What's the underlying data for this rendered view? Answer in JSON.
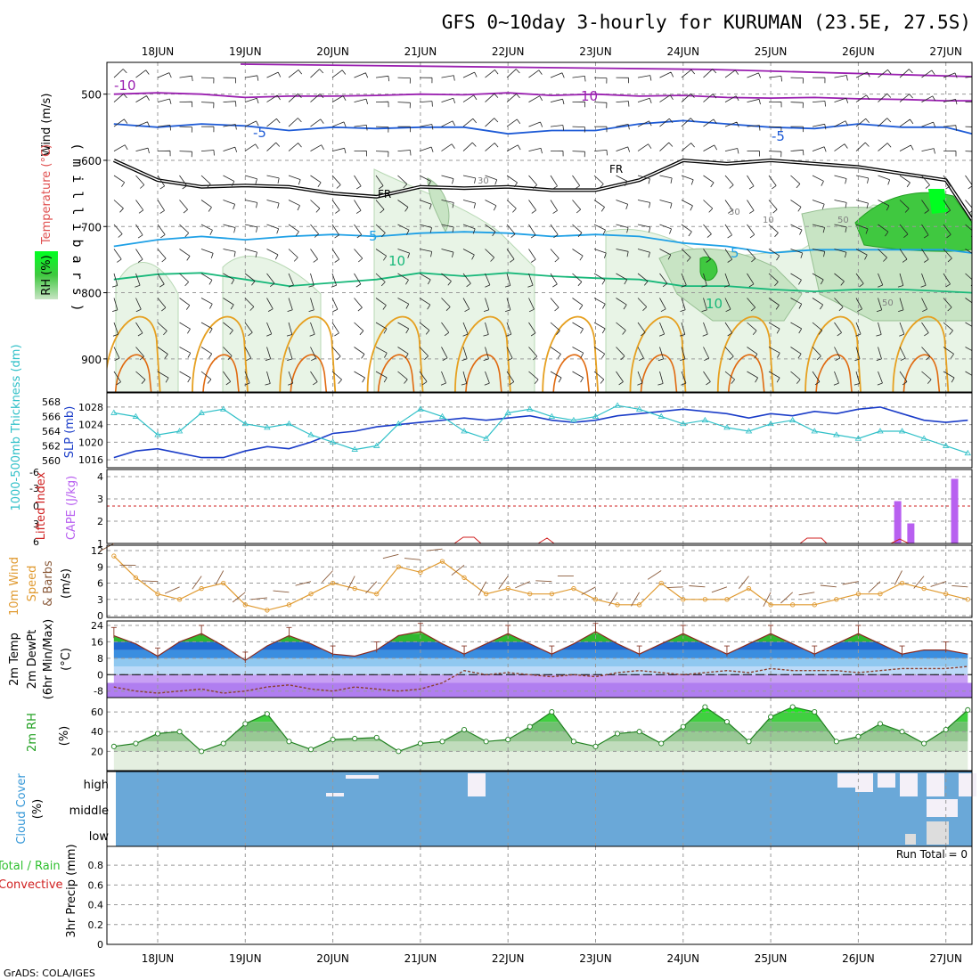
{
  "title": "GFS 0~10day 3-hourly for KURUMAN (23.5E, 27.5S)",
  "footer": "GrADS: COLA/IGES",
  "days": [
    "18JUN",
    "19JUN",
    "20JUN",
    "21JUN",
    "22JUN",
    "23JUN",
    "24JUN",
    "25JUN",
    "26JUN",
    "27JUN"
  ],
  "colors": {
    "frame": "#000000",
    "grid": "#999999",
    "minus10": "#9a1fb0",
    "minus5": "#1e5bd6",
    "plus5": "#1ea0e6",
    "plus10": "#18b87a",
    "freeze": "#000000",
    "warm1": "#e6a020",
    "warm2": "#e06a10",
    "rh1": "#e8f4e6",
    "rh2": "#c8e4c4",
    "rh3": "#a8c8a8",
    "rh4": "#30c030",
    "slp": "#1a3cc8",
    "thick": "#30c0c8",
    "cape": "#b860f0",
    "li": "#d02020",
    "wind": "#e09a30",
    "barb": "#8a5a3a",
    "temp": "#20b020",
    "dew": "#8a4030",
    "rhline": "#208020",
    "cloud": "#6aa8d8",
    "cloudclear": "#f4f0f8",
    "precip": "#d02020"
  },
  "upper": {
    "ylabel": "( m i l l i b a r s )",
    "ticks": [
      500,
      600,
      700,
      800,
      900
    ],
    "legend": [
      "Wind (m/s)",
      "Temperature (°C)",
      "RH (%)"
    ],
    "labels": {
      "m10": "-10",
      "p10a": "10",
      "m5a": "-5",
      "m5b": "-5",
      "fr1": "FR",
      "fr2": "FR",
      "p5a": "5",
      "p5b": "5",
      "p10b": "10",
      "p10c": "10",
      "r30a": "30",
      "r30b": "30",
      "r10": "10",
      "r50a": "50",
      "r50b": "50"
    }
  },
  "slp_panel": {
    "left_label": "1000-500mb Thickness (dm)",
    "right_label": "SLP (mb)",
    "thick_ticks": [
      560,
      562,
      564,
      566,
      568
    ],
    "slp_ticks": [
      1016,
      1020,
      1024,
      1028
    ]
  },
  "cape_panel": {
    "left_label": "Lifted Index",
    "right_label": "CAPE (J/kg)",
    "li_ticks": [
      "6",
      "3",
      "0",
      "-3",
      "-6"
    ],
    "cape_ticks": [
      "1",
      "2",
      "3",
      "4"
    ]
  },
  "wind_panel": {
    "labels": [
      "10m Wind",
      "Speed",
      "& Barbs",
      "(m/s)"
    ],
    "ticks": [
      0,
      3,
      6,
      9,
      12
    ]
  },
  "temp_panel": {
    "labels": [
      "2m Temp",
      "2m DewPt",
      "(6hr Min/Max)",
      "(°C)"
    ],
    "ticks": [
      -8,
      0,
      8,
      16,
      24
    ]
  },
  "rh_panel": {
    "labels": [
      "2m RH",
      "(%)"
    ],
    "ticks": [
      20,
      40,
      60
    ]
  },
  "cloud_panel": {
    "labels": [
      "Cloud Cover",
      "(%)"
    ],
    "levels": [
      "high",
      "middle",
      "low"
    ]
  },
  "precip_panel": {
    "labels": [
      "Total / Rain",
      "Convective",
      "3hr Precip (mm)"
    ],
    "run_total": "Run Total = 0",
    "ticks": [
      "0",
      "0.2",
      "0.4",
      "0.6",
      "0.8"
    ]
  },
  "chart_data": [
    {
      "type": "line",
      "title": "GFS 0~10day 3-hourly for KURUMAN (23.5E, 27.5S)",
      "panel": "upper-air temperature isotherm heights (mb)",
      "x": [
        "17.5",
        "18.0",
        "18.5",
        "19.0",
        "19.5",
        "20.0",
        "20.5",
        "21.0",
        "21.5",
        "22.0",
        "22.5",
        "23.0",
        "23.5",
        "24.0",
        "24.5",
        "25.0",
        "25.5",
        "26.0",
        "26.5",
        "27.0",
        "27.3"
      ],
      "series": [
        {
          "name": "-10",
          "values": [
            500,
            498,
            500,
            505,
            503,
            503,
            502,
            500,
            501,
            498,
            502,
            500,
            503,
            502,
            505,
            506,
            505,
            507,
            508,
            510,
            510
          ]
        },
        {
          "name": "-5",
          "values": [
            545,
            550,
            545,
            548,
            555,
            550,
            552,
            550,
            550,
            560,
            555,
            555,
            545,
            540,
            545,
            550,
            552,
            545,
            550,
            550,
            560
          ]
        },
        {
          "name": "FR",
          "values": [
            600,
            630,
            640,
            638,
            640,
            650,
            655,
            640,
            642,
            640,
            645,
            645,
            630,
            600,
            605,
            600,
            605,
            610,
            620,
            630,
            690
          ]
        },
        {
          "name": "5",
          "values": [
            730,
            720,
            715,
            720,
            715,
            712,
            715,
            710,
            708,
            710,
            715,
            712,
            715,
            725,
            730,
            740,
            735,
            735,
            735,
            735,
            740
          ]
        },
        {
          "name": "10",
          "values": [
            780,
            772,
            770,
            780,
            790,
            785,
            780,
            770,
            775,
            770,
            775,
            778,
            780,
            790,
            790,
            795,
            798,
            795,
            795,
            798,
            800
          ]
        }
      ]
    },
    {
      "type": "line",
      "panel": "SLP and 1000-500mb thickness",
      "x": [
        "17.5",
        "17.75",
        "18.0",
        "18.25",
        "18.5",
        "18.75",
        "19.0",
        "19.25",
        "19.5",
        "19.75",
        "20.0",
        "20.25",
        "20.5",
        "20.75",
        "21.0",
        "21.25",
        "21.5",
        "21.75",
        "22.0",
        "22.25",
        "22.5",
        "22.75",
        "23.0",
        "23.25",
        "23.5",
        "23.75",
        "24.0",
        "24.25",
        "24.5",
        "24.75",
        "25.0",
        "25.25",
        "25.5",
        "25.75",
        "26.0",
        "26.25",
        "26.5",
        "26.75",
        "27.0",
        "27.25"
      ],
      "series": [
        {
          "name": "SLP (mb)",
          "values": [
            1016.5,
            1018,
            1018.5,
            1017.5,
            1016.5,
            1016.5,
            1018,
            1019,
            1018.5,
            1020,
            1022,
            1022.5,
            1023.5,
            1024,
            1024.5,
            1025,
            1025.5,
            1025,
            1025.5,
            1026,
            1025,
            1024.5,
            1025,
            1026,
            1026.5,
            1027,
            1027.5,
            1027,
            1026.5,
            1025.5,
            1026.5,
            1026,
            1027,
            1026.5,
            1027.5,
            1028,
            1026.5,
            1025,
            1024.5,
            1025
          ]
        },
        {
          "name": "1000-500mb Thickness (dm)",
          "values": [
            566.5,
            566,
            563.5,
            564,
            566.5,
            567,
            565,
            564.5,
            565,
            563.5,
            562.5,
            561.5,
            562,
            565,
            567,
            566,
            564,
            563,
            566.5,
            567,
            566,
            565.5,
            566,
            567.5,
            567,
            566,
            565,
            565.5,
            564.5,
            564,
            565,
            565.5,
            564,
            563.5,
            563,
            564,
            564,
            563,
            562,
            561
          ]
        }
      ]
    },
    {
      "type": "bar",
      "panel": "CAPE (J/kg)",
      "categories": [
        "26.45",
        "26.6",
        "27.1"
      ],
      "values": [
        2.9,
        1.9,
        3.9
      ]
    },
    {
      "type": "line",
      "panel": "10m wind speed (m/s)",
      "x": [
        "17.5",
        "17.75",
        "18.0",
        "18.25",
        "18.5",
        "18.75",
        "19.0",
        "19.25",
        "19.5",
        "19.75",
        "20.0",
        "20.25",
        "20.5",
        "20.75",
        "21.0",
        "21.25",
        "21.5",
        "21.75",
        "22.0",
        "22.25",
        "22.5",
        "22.75",
        "23.0",
        "23.25",
        "23.5",
        "23.75",
        "24.0",
        "24.25",
        "24.5",
        "24.75",
        "25.0",
        "25.25",
        "25.5",
        "25.75",
        "26.0",
        "26.25",
        "26.5",
        "26.75",
        "27.0",
        "27.25"
      ],
      "series": [
        {
          "name": "Speed",
          "values": [
            11,
            7,
            4,
            3,
            5,
            6,
            2,
            1,
            2,
            4,
            6,
            5,
            4,
            9,
            8,
            10,
            7,
            4,
            5,
            4,
            4,
            5,
            3,
            2,
            2,
            6,
            3,
            3,
            3,
            5,
            2,
            2,
            2,
            3,
            4,
            4,
            6,
            5,
            4,
            3
          ]
        }
      ]
    },
    {
      "type": "area",
      "panel": "2m temperature and dew point (°C)",
      "x": [
        "17.5",
        "17.75",
        "18.0",
        "18.25",
        "18.5",
        "18.75",
        "19.0",
        "19.25",
        "19.5",
        "19.75",
        "20.0",
        "20.25",
        "20.5",
        "20.75",
        "21.0",
        "21.25",
        "21.5",
        "21.75",
        "22.0",
        "22.25",
        "22.5",
        "22.75",
        "23.0",
        "23.25",
        "23.5",
        "23.75",
        "24.0",
        "24.25",
        "24.5",
        "24.75",
        "25.0",
        "25.25",
        "25.5",
        "25.75",
        "26.0",
        "26.25",
        "26.5",
        "26.75",
        "27.0",
        "27.25"
      ],
      "series": [
        {
          "name": "2m Temp",
          "values": [
            19,
            15,
            9,
            16,
            20,
            14,
            7,
            14,
            19,
            15,
            10,
            9,
            12,
            19,
            21,
            15,
            10,
            15,
            20,
            15,
            10,
            15,
            21,
            15,
            10,
            15,
            20,
            15,
            10,
            15,
            20,
            15,
            10,
            15,
            20,
            15,
            10,
            12,
            12,
            10
          ]
        },
        {
          "name": "2m DewPt",
          "values": [
            -6,
            -8,
            -9,
            -8,
            -7,
            -9,
            -8,
            -6,
            -5,
            -7,
            -8,
            -6,
            -7,
            -8,
            -7,
            -4,
            2,
            0,
            1,
            0,
            -1,
            0,
            -1,
            1,
            2,
            1,
            0,
            1,
            2,
            1,
            3,
            2,
            2,
            2,
            1,
            2,
            3,
            3,
            3,
            4
          ]
        }
      ]
    },
    {
      "type": "area",
      "panel": "2m RH (%)",
      "x": [
        "17.5",
        "17.75",
        "18.0",
        "18.25",
        "18.5",
        "18.75",
        "19.0",
        "19.25",
        "19.5",
        "19.75",
        "20.0",
        "20.25",
        "20.5",
        "20.75",
        "21.0",
        "21.25",
        "21.5",
        "21.75",
        "22.0",
        "22.25",
        "22.5",
        "22.75",
        "23.0",
        "23.25",
        "23.5",
        "23.75",
        "24.0",
        "24.25",
        "24.5",
        "24.75",
        "25.0",
        "25.25",
        "25.5",
        "25.75",
        "26.0",
        "26.25",
        "26.5",
        "26.75",
        "27.0",
        "27.25"
      ],
      "series": [
        {
          "name": "2m RH",
          "values": [
            25,
            28,
            38,
            40,
            20,
            28,
            48,
            58,
            30,
            22,
            32,
            33,
            34,
            20,
            28,
            30,
            42,
            30,
            32,
            45,
            60,
            30,
            25,
            38,
            40,
            28,
            45,
            65,
            50,
            30,
            55,
            65,
            60,
            30,
            35,
            48,
            40,
            28,
            42,
            62
          ]
        }
      ]
    },
    {
      "type": "bar",
      "panel": "3hr Precip (mm)",
      "categories": [
        "all times"
      ],
      "values": [
        0
      ]
    }
  ]
}
